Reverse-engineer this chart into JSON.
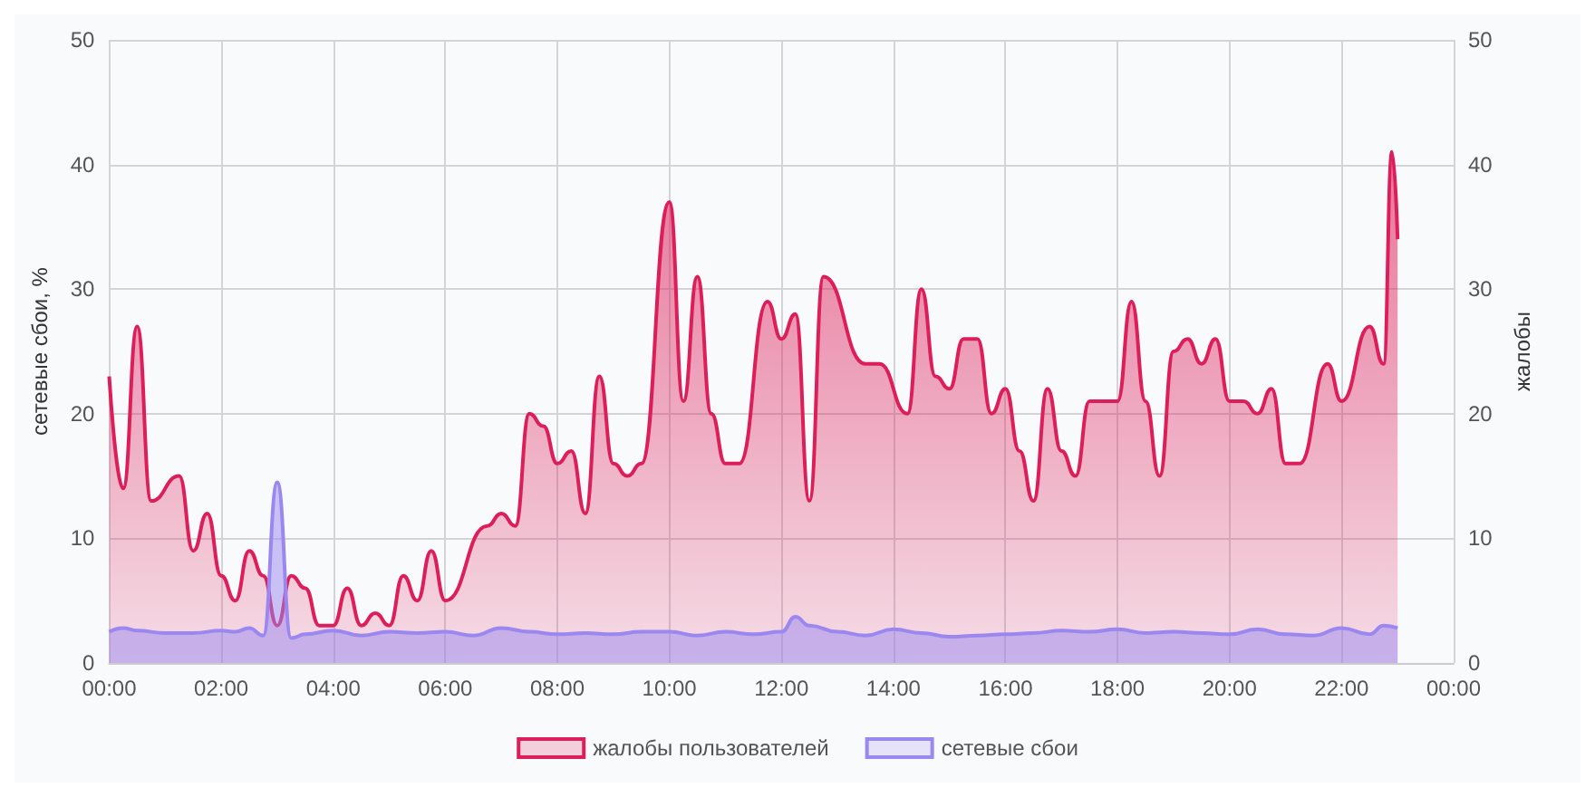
{
  "chart_data": {
    "type": "area",
    "ylabel": "сетевые сбои, %",
    "y2label": "жалобы",
    "xlim": [
      0,
      24
    ],
    "xticks": [
      {
        "value": 0,
        "label": "00:00"
      },
      {
        "value": 2,
        "label": "02:00"
      },
      {
        "value": 4,
        "label": "04:00"
      },
      {
        "value": 6,
        "label": "06:00"
      },
      {
        "value": 8,
        "label": "08:00"
      },
      {
        "value": 10,
        "label": "10:00"
      },
      {
        "value": 12,
        "label": "12:00"
      },
      {
        "value": 14,
        "label": "14:00"
      },
      {
        "value": 16,
        "label": "16:00"
      },
      {
        "value": 18,
        "label": "18:00"
      },
      {
        "value": 20,
        "label": "20:00"
      },
      {
        "value": 22,
        "label": "22:00"
      },
      {
        "value": 24,
        "label": "00:00"
      }
    ],
    "ylim": [
      0,
      50
    ],
    "yticks": [
      0,
      10,
      20,
      30,
      40,
      50
    ],
    "y2lim": [
      0,
      50
    ],
    "y2ticks": [
      0,
      10,
      20,
      30,
      40,
      50
    ],
    "grid": true,
    "legend": "bottom",
    "marker": "none",
    "line_style": "solid",
    "series": [
      {
        "name": "жалобы пользователей",
        "color": "#dc1f5a",
        "x": [
          0,
          0.25,
          0.5,
          0.75,
          1.25,
          1.5,
          1.75,
          2,
          2.25,
          2.5,
          2.75,
          3,
          3.25,
          3.5,
          3.75,
          4,
          4.25,
          4.5,
          4.75,
          5,
          5.25,
          5.5,
          5.75,
          6,
          6.75,
          7,
          7.25,
          7.5,
          7.75,
          8,
          8.25,
          8.5,
          8.75,
          9,
          9.25,
          9.5,
          10,
          10.25,
          10.5,
          10.75,
          11,
          11.25,
          11.75,
          12,
          12.25,
          12.5,
          12.75,
          13.5,
          13.75,
          14.25,
          14.5,
          14.75,
          15,
          15.25,
          15.5,
          15.75,
          16,
          16.25,
          16.5,
          16.75,
          17,
          17.25,
          17.5,
          18,
          18.25,
          18.5,
          18.75,
          19,
          19.25,
          19.5,
          19.75,
          20,
          20.25,
          20.5,
          20.75,
          21,
          21.25,
          21.75,
          22,
          22.5,
          22.75,
          22.9,
          23
        ],
        "values": [
          23,
          14,
          27,
          13,
          15,
          9,
          12,
          7,
          5,
          9,
          7,
          3,
          7,
          6,
          3,
          3,
          6,
          3,
          4,
          3,
          7,
          5,
          9,
          5,
          11,
          12,
          11,
          20,
          19,
          16,
          17,
          12,
          23,
          16,
          15,
          16,
          37,
          21,
          31,
          20,
          16,
          16,
          29,
          26,
          28,
          13,
          31,
          24,
          24,
          20,
          30,
          23,
          22,
          26,
          26,
          20,
          22,
          17,
          13,
          22,
          17,
          15,
          21,
          21,
          29,
          21,
          15,
          25,
          26,
          24,
          26,
          21,
          21,
          20,
          22,
          16,
          16,
          24,
          21,
          27,
          24,
          41,
          34
        ]
      },
      {
        "name": "сетевые сбои",
        "color": "#9a88f0",
        "x": [
          0,
          0.25,
          0.5,
          1,
          1.5,
          2,
          2.25,
          2.5,
          2.75,
          3,
          3.25,
          3.5,
          4,
          4.5,
          5,
          5.5,
          6,
          6.5,
          7,
          7.5,
          8,
          8.5,
          9,
          9.5,
          10,
          10.5,
          11,
          11.5,
          12,
          12.25,
          12.5,
          13,
          13.5,
          14,
          14.5,
          15,
          15.5,
          16,
          16.5,
          17,
          17.5,
          18,
          18.5,
          19,
          19.5,
          20,
          20.5,
          21,
          21.5,
          22,
          22.5,
          22.75,
          23
        ],
        "values": [
          2.5,
          2.8,
          2.6,
          2.4,
          2.4,
          2.6,
          2.5,
          2.8,
          2.2,
          14.5,
          2,
          2.3,
          2.6,
          2.2,
          2.5,
          2.4,
          2.5,
          2.2,
          2.8,
          2.5,
          2.3,
          2.4,
          2.3,
          2.5,
          2.5,
          2.2,
          2.5,
          2.3,
          2.5,
          3.7,
          3,
          2.5,
          2.2,
          2.7,
          2.4,
          2.1,
          2.2,
          2.3,
          2.4,
          2.6,
          2.5,
          2.7,
          2.4,
          2.5,
          2.4,
          2.3,
          2.7,
          2.3,
          2.2,
          2.8,
          2.3,
          3,
          2.8
        ]
      }
    ]
  }
}
